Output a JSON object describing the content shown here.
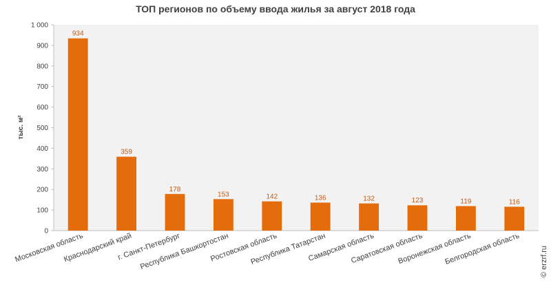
{
  "chart_data": {
    "type": "bar",
    "title": "ТОП регионов по объему ввода жилья за август 2018 года",
    "ylabel": "тыс. м²",
    "xlabel": "",
    "categories": [
      "Московская область",
      "Краснодарский край",
      "г. Санкт-Петербург",
      "Республика Башкортостан",
      "Ростовская область",
      "Республика Татарстан",
      "Самарская область",
      "Саратовская область",
      "Воронежская область",
      "Белгородская область"
    ],
    "values": [
      934,
      359,
      178,
      153,
      142,
      136,
      132,
      123,
      119,
      116
    ],
    "ylim": [
      0,
      1000
    ],
    "yticks": [
      "0",
      "100",
      "200",
      "300",
      "400",
      "500",
      "600",
      "700",
      "800",
      "900",
      "1 000"
    ],
    "grid": false,
    "legend": "none",
    "colors": {
      "bar": "#e46c0a",
      "label": "#c55a11",
      "plot_bg": "#f2f2f2"
    }
  },
  "watermark": "© erzrf.ru"
}
